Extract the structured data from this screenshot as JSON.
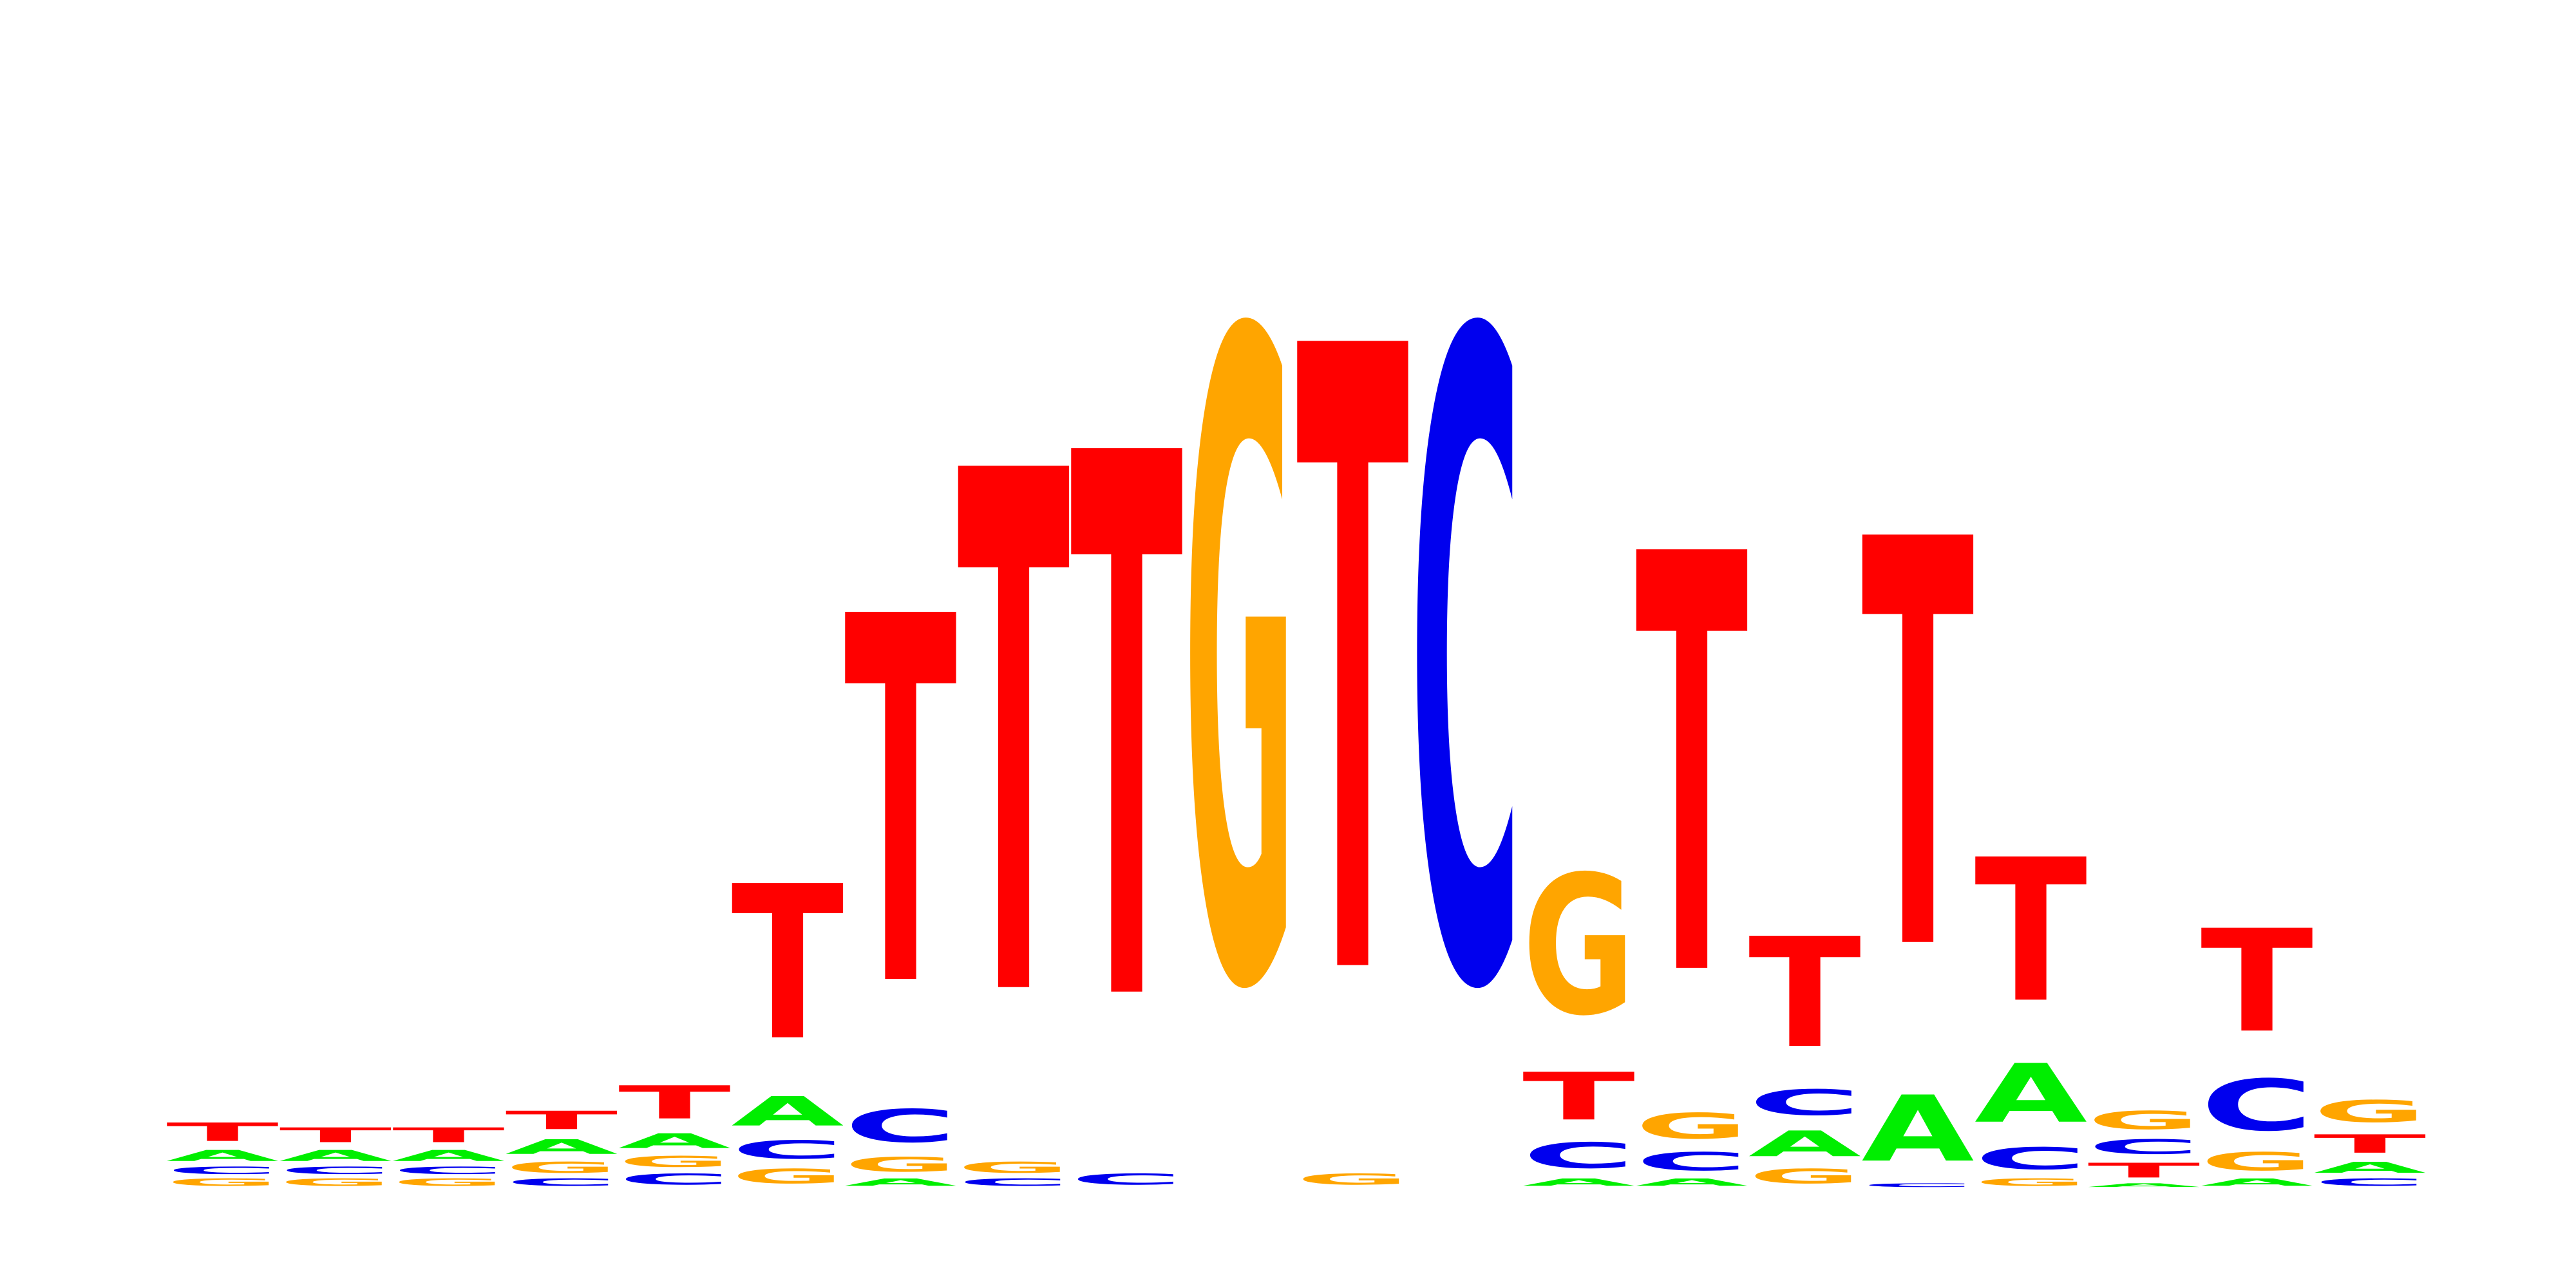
{
  "chart_data": {
    "type": "sequence-logo",
    "colors": {
      "A": "#00ee00",
      "C": "#0000ee",
      "G": "#ffa500",
      "T": "#ff0000"
    },
    "positions": [
      [
        {
          "base": "G",
          "value": 0.02
        },
        {
          "base": "C",
          "value": 0.02
        },
        {
          "base": "A",
          "value": 0.03
        },
        {
          "base": "T",
          "value": 0.05
        }
      ],
      [
        {
          "base": "G",
          "value": 0.02
        },
        {
          "base": "C",
          "value": 0.02
        },
        {
          "base": "A",
          "value": 0.03
        },
        {
          "base": "T",
          "value": 0.04
        }
      ],
      [
        {
          "base": "G",
          "value": 0.02
        },
        {
          "base": "C",
          "value": 0.02
        },
        {
          "base": "A",
          "value": 0.03
        },
        {
          "base": "T",
          "value": 0.04
        }
      ],
      [
        {
          "base": "C",
          "value": 0.02
        },
        {
          "base": "G",
          "value": 0.03
        },
        {
          "base": "A",
          "value": 0.04
        },
        {
          "base": "T",
          "value": 0.05
        }
      ],
      [
        {
          "base": "C",
          "value": 0.03
        },
        {
          "base": "G",
          "value": 0.03
        },
        {
          "base": "A",
          "value": 0.04
        },
        {
          "base": "T",
          "value": 0.09
        }
      ],
      [
        {
          "base": "G",
          "value": 0.04
        },
        {
          "base": "C",
          "value": 0.05
        },
        {
          "base": "A",
          "value": 0.08
        },
        {
          "base": "T",
          "value": 0.42
        }
      ],
      [
        {
          "base": "A",
          "value": 0.02
        },
        {
          "base": "G",
          "value": 0.04
        },
        {
          "base": "C",
          "value": 0.09
        },
        {
          "base": "T",
          "value": 1.0
        }
      ],
      [
        {
          "base": "C",
          "value": 0.02
        },
        {
          "base": "G",
          "value": 0.03
        },
        {
          "base": "T",
          "value": 1.42
        }
      ],
      [
        {
          "base": "C",
          "value": 0.03
        },
        {
          "base": "T",
          "value": 1.48
        }
      ],
      [
        {
          "base": "G",
          "value": 1.76
        }
      ],
      [
        {
          "base": "G",
          "value": 0.03
        },
        {
          "base": "T",
          "value": 1.7
        }
      ],
      [
        {
          "base": "C",
          "value": 1.76
        }
      ],
      [
        {
          "base": "A",
          "value": 0.02
        },
        {
          "base": "C",
          "value": 0.07
        },
        {
          "base": "T",
          "value": 0.13
        },
        {
          "base": "G",
          "value": 0.38
        }
      ],
      [
        {
          "base": "A",
          "value": 0.02
        },
        {
          "base": "C",
          "value": 0.05
        },
        {
          "base": "G",
          "value": 0.07
        },
        {
          "base": "T",
          "value": 1.14
        }
      ],
      [
        {
          "base": "G",
          "value": 0.04
        },
        {
          "base": "A",
          "value": 0.07
        },
        {
          "base": "C",
          "value": 0.07
        },
        {
          "base": "T",
          "value": 0.3
        }
      ],
      [
        {
          "base": "C",
          "value": 0.01
        },
        {
          "base": "A",
          "value": 0.18
        },
        {
          "base": "T",
          "value": 1.11
        }
      ],
      [
        {
          "base": "G",
          "value": 0.02
        },
        {
          "base": "C",
          "value": 0.06
        },
        {
          "base": "A",
          "value": 0.16
        },
        {
          "base": "T",
          "value": 0.39
        }
      ],
      [
        {
          "base": "A",
          "value": 0.01
        },
        {
          "base": "T",
          "value": 0.04
        },
        {
          "base": "C",
          "value": 0.04
        },
        {
          "base": "G",
          "value": 0.05
        }
      ],
      [
        {
          "base": "A",
          "value": 0.02
        },
        {
          "base": "G",
          "value": 0.05
        },
        {
          "base": "C",
          "value": 0.14
        },
        {
          "base": "T",
          "value": 0.28
        }
      ],
      [
        {
          "base": "C",
          "value": 0.02
        },
        {
          "base": "A",
          "value": 0.03
        },
        {
          "base": "T",
          "value": 0.05
        },
        {
          "base": "G",
          "value": 0.06
        }
      ]
    ]
  }
}
